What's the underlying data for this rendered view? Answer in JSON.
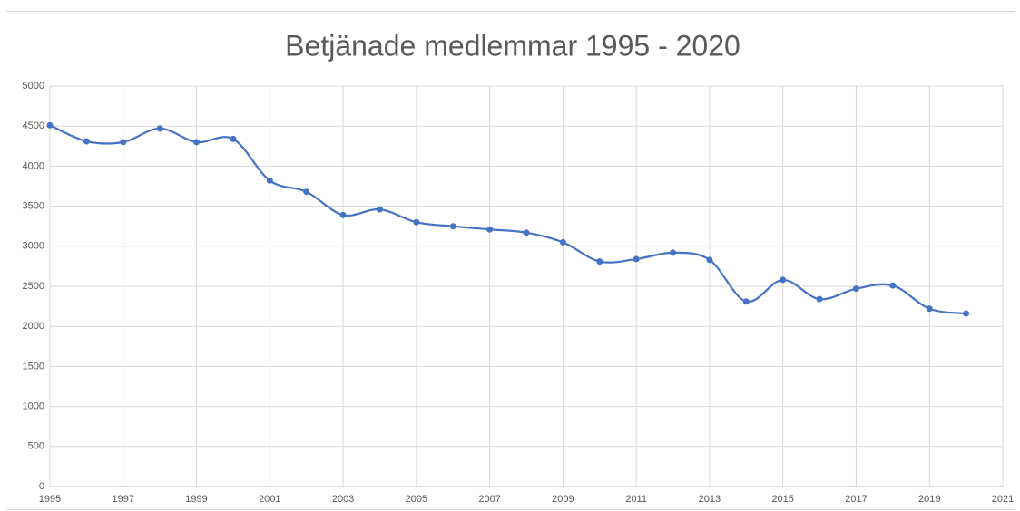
{
  "chart_data": {
    "type": "line",
    "title": "Betjänade medlemmar 1995 - 2020",
    "x": [
      1995,
      1996,
      1997,
      1998,
      1999,
      2000,
      2001,
      2002,
      2003,
      2004,
      2005,
      2006,
      2007,
      2008,
      2009,
      2010,
      2011,
      2012,
      2013,
      2014,
      2015,
      2016,
      2017,
      2018,
      2019,
      2020
    ],
    "series": [
      {
        "name": "Betjänade medlemmar",
        "color": "#4472c4",
        "values": [
          4510,
          4310,
          4300,
          4470,
          4300,
          4340,
          3820,
          3680,
          3390,
          3460,
          3300,
          3250,
          3210,
          3170,
          3050,
          2810,
          2840,
          2920,
          2830,
          2310,
          2580,
          2340,
          2470,
          2510,
          2220,
          2160
        ]
      }
    ],
    "xlim": [
      1995,
      2021
    ],
    "xticks": [
      1995,
      1997,
      1999,
      2001,
      2003,
      2005,
      2007,
      2009,
      2011,
      2013,
      2015,
      2017,
      2019,
      2021
    ],
    "ylim": [
      0,
      5000
    ],
    "yticks": [
      0,
      500,
      1000,
      1500,
      2000,
      2500,
      3000,
      3500,
      4000,
      4500,
      5000
    ],
    "grid": true,
    "smooth": true
  }
}
